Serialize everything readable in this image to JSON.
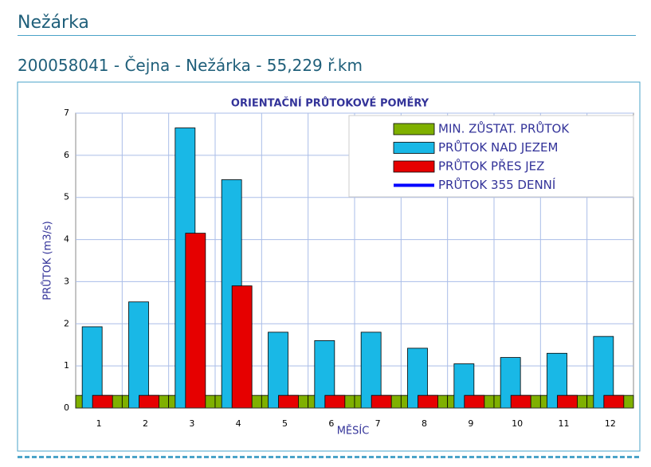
{
  "header": {
    "title": "Nežárka",
    "subtitle": "200058041 - Čejna - Nežárka - 55,229 ř.km"
  },
  "chart_data": {
    "type": "bar",
    "title": "ORIENTAČNÍ PRŮTOKOVÉ POMĚRY",
    "x_label": "MĚSÍC",
    "y_label": "PRŮTOK (m3/s)",
    "categories": [
      "1",
      "2",
      "3",
      "4",
      "5",
      "6",
      "7",
      "8",
      "9",
      "10",
      "11",
      "12"
    ],
    "series": [
      {
        "name": "MIN. ZŮSTAT. PRŮTOK",
        "color": "#7fb000",
        "values": [
          0.3,
          0.3,
          0.3,
          0.3,
          0.3,
          0.3,
          0.3,
          0.3,
          0.3,
          0.3,
          0.3,
          0.3
        ]
      },
      {
        "name": "PRŮTOK NAD JEZEM",
        "color": "#19b8e6",
        "values": [
          1.93,
          2.52,
          6.65,
          5.42,
          1.8,
          1.6,
          1.8,
          1.42,
          1.05,
          1.2,
          1.3,
          1.7
        ]
      },
      {
        "name": "PRŮTOK PŘES JEZ",
        "color": "#e60000",
        "values": [
          0.3,
          0.3,
          4.15,
          2.9,
          0.3,
          0.3,
          0.3,
          0.3,
          0.3,
          0.3,
          0.3,
          0.3
        ]
      },
      {
        "name": "PRŮTOK 355 DENNÍ",
        "type": "line",
        "color": "#0000ff",
        "values": [
          null,
          null,
          null,
          null,
          null,
          null,
          null,
          null,
          null,
          null,
          null,
          null
        ]
      }
    ],
    "ylim": [
      0,
      7
    ],
    "yticks": [
      0,
      1,
      2,
      3,
      4,
      5,
      6,
      7
    ],
    "grid": true,
    "legend": "upper right"
  }
}
